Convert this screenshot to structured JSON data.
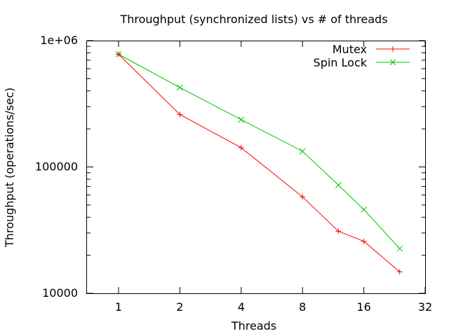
{
  "chart_data": {
    "type": "line",
    "title": "Throughput (synchronized lists) vs # of threads",
    "xlabel": "Threads",
    "ylabel": "Throughput (operations/sec)",
    "xscale": "log2",
    "yscale": "log10",
    "xlim": [
      0.7,
      32
    ],
    "ylim": [
      10000,
      1000000
    ],
    "xticks": [
      1,
      2,
      4,
      8,
      16,
      32
    ],
    "xtick_labels": [
      "1",
      "2",
      "4",
      "8",
      "16",
      "32"
    ],
    "yticks": [
      10000,
      100000,
      1000000
    ],
    "ytick_labels": [
      "10000",
      "100000",
      "1e+06"
    ],
    "legend_position": "top-right",
    "grid": false,
    "series": [
      {
        "name": "Mutex",
        "color": "#ff0000",
        "marker": "plus",
        "x": [
          1,
          2,
          4,
          8,
          12,
          16,
          24
        ],
        "y": [
          780000,
          260000,
          142000,
          58000,
          31000,
          25800,
          14800
        ]
      },
      {
        "name": "Spin Lock",
        "color": "#00c800",
        "marker": "cross",
        "x": [
          1,
          2,
          4,
          8,
          12,
          16,
          24
        ],
        "y": [
          780000,
          425000,
          237000,
          133000,
          72000,
          46000,
          22600
        ]
      }
    ]
  }
}
